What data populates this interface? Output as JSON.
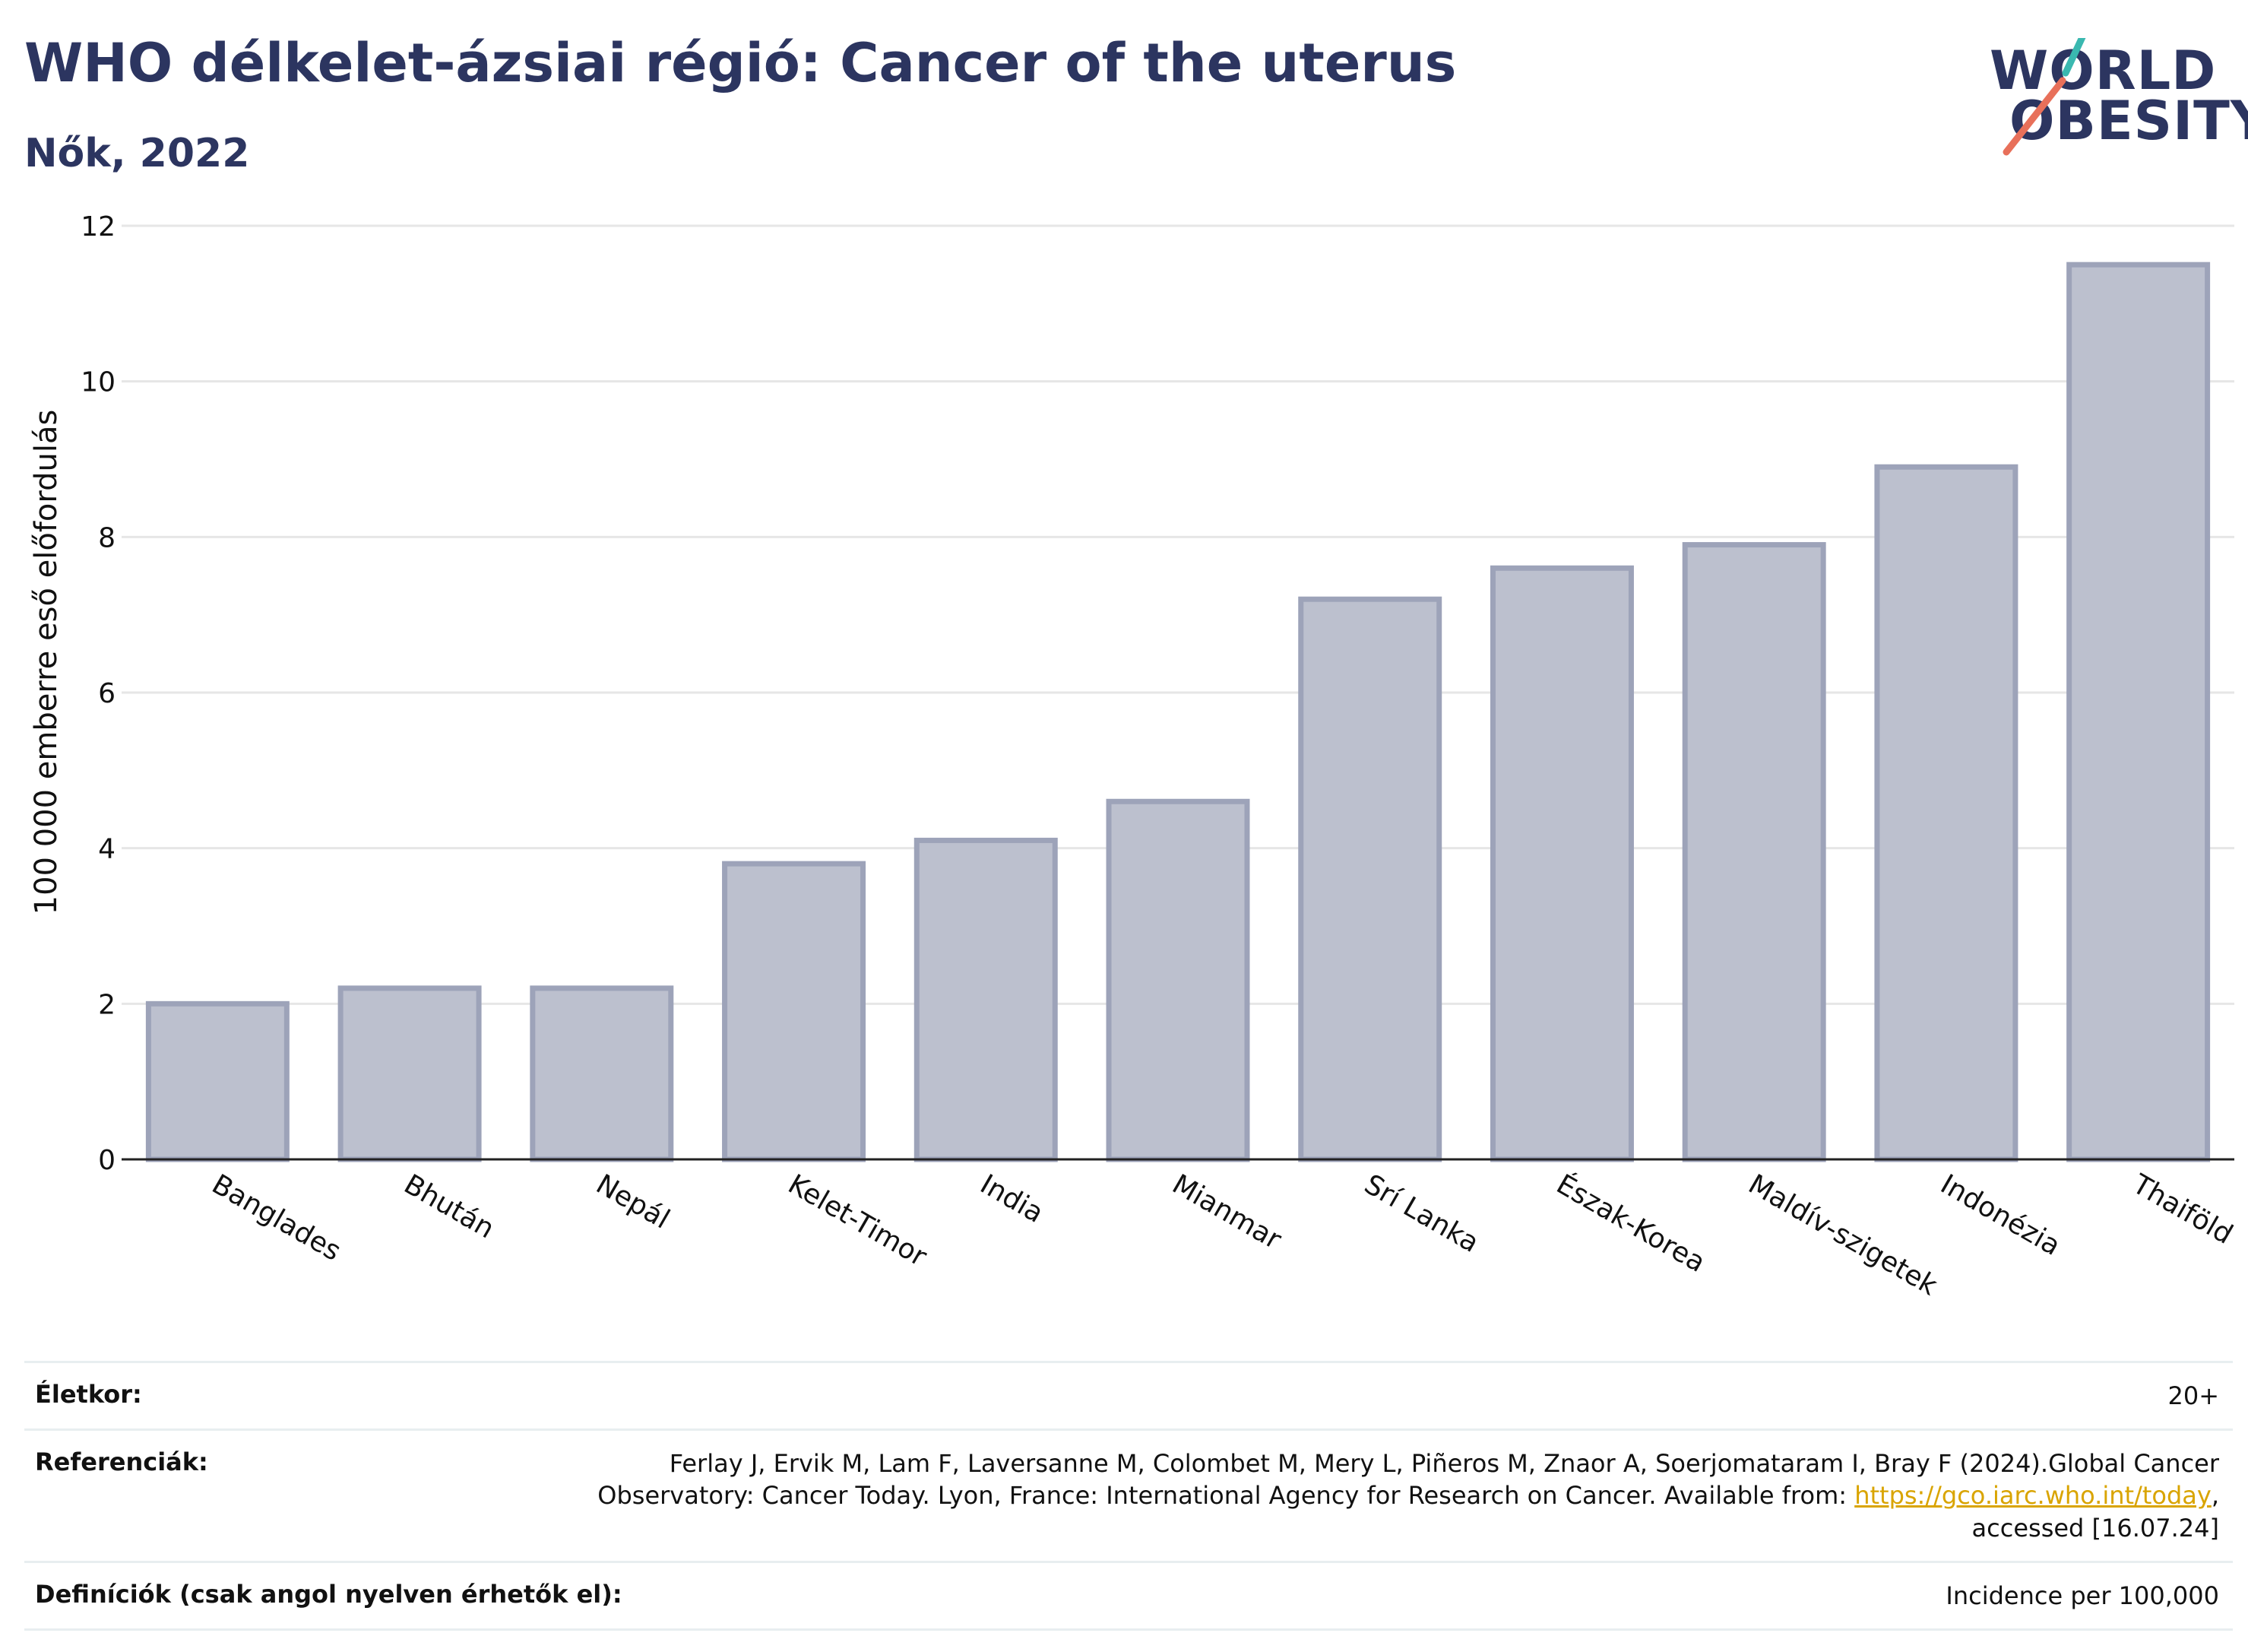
{
  "header": {
    "title": "WHO délkelet-ázsiai régió: Cancer of the uterus",
    "subtitle": "Nők, 2022"
  },
  "logo": {
    "line1": "WORLD",
    "line2": "OBESITY"
  },
  "chart_data": {
    "type": "bar",
    "categories": [
      "Banglades",
      "Bhután",
      "Nepál",
      "Kelet-Timor",
      "India",
      "Mianmar",
      "Srí Lanka",
      "Észak-Korea",
      "Maldív-szigetek",
      "Indonézia",
      "Thaiföld"
    ],
    "values": [
      2.0,
      2.2,
      2.2,
      3.8,
      4.1,
      4.6,
      7.2,
      7.6,
      7.9,
      8.9,
      11.5
    ],
    "ylabel": "100 000 emberre eső előfordulás",
    "xlabel": "",
    "ylim": [
      0,
      12
    ],
    "yticks": [
      0,
      2,
      4,
      6,
      8,
      10,
      12
    ],
    "grid": true,
    "bar_fill": "#bcc0ce",
    "bar_stroke": "#9da3b9",
    "gridline_color": "#e6e6e6"
  },
  "footer": {
    "age_label": "Életkor:",
    "age_value": "20+",
    "ref_label": "Referenciák:",
    "ref_line1": "Ferlay J, Ervik M, Lam F, Laversanne M, Colombet M, Mery L, Piñeros M, Znaor A, Soerjomataram I, Bray F (2024).Global Cancer",
    "ref_line2_pre": "Observatory: Cancer Today. Lyon, France: International Agency for Research on Cancer. Available from: ",
    "ref_link": "https://gco.iarc.who.int/today",
    "ref_line2_post": ",",
    "ref_line3": "accessed [16.07.24]",
    "def_label": "Definíciók (csak angol nyelven érhetők el):",
    "def_value": "Incidence per 100,000"
  },
  "colors": {
    "brand": "#2c3560",
    "link": "#d9a400",
    "logo_teal": "#3ab8b0",
    "logo_coral": "#e8705a"
  }
}
